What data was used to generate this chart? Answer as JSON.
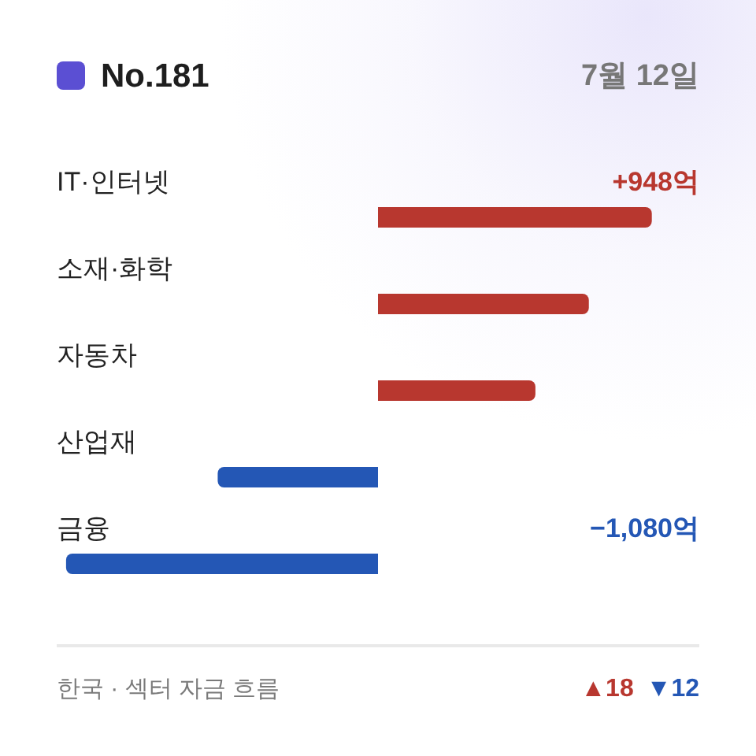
{
  "chart_data": {
    "type": "bar",
    "orientation": "horizontal",
    "title": "No.181",
    "subtitle": "7월 12일",
    "categories": [
      "IT·인터넷",
      "소재·화학",
      "자동차",
      "산업재",
      "금융"
    ],
    "values": [
      948,
      730,
      545,
      -555,
      -1080
    ],
    "colors": [
      "#b8372f",
      "#b8372f",
      "#b8372f",
      "#2457b5",
      "#2457b5"
    ],
    "value_labels": [
      "+948억",
      null,
      null,
      null,
      "−1,080억"
    ],
    "annotations": [
      "한국 · 섹터 자금 흐름",
      "▲18",
      "▼12"
    ]
  }
}
